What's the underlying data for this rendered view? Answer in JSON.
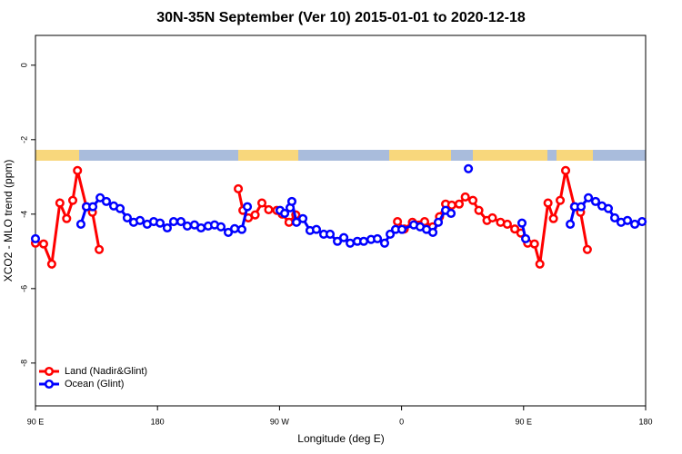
{
  "chart_data": {
    "type": "line",
    "title": "30N-35N September (Ver 10)   2015-01-01 to 2020-12-18",
    "xlabel": "Longitude (deg E)",
    "ylabel": "XCO2 - MLO trend (ppm)",
    "xlim": [
      90,
      540
    ],
    "ylim": [
      -9.15,
      0.8
    ],
    "xticks": [
      {
        "value": 90,
        "label": "90 E"
      },
      180,
      {
        "value": 270,
        "label": "90 W"
      },
      {
        "value": 360,
        "label": "0"
      },
      {
        "value": 450,
        "label": "90 E"
      },
      {
        "value": 540,
        "label": "180"
      }
    ],
    "yticks": [
      0,
      -2,
      -4,
      -6,
      -8
    ],
    "legend": "bottom-left",
    "series": [
      {
        "name": "Land (Nadir&Glint)",
        "color": "#ff0000",
        "x": [
          90,
          96,
          102,
          108,
          113,
          117.5,
          121,
          127.5,
          132,
          137,
          null,
          239.6,
          243,
          247,
          252,
          257,
          262,
          268,
          272,
          277,
          282,
          null,
          357,
          362,
          368,
          377,
          383,
          388,
          392.5,
          397,
          402.5,
          407,
          412.6,
          417,
          423,
          427,
          433,
          438,
          443.5,
          448,
          453,
          458,
          462,
          468,
          472,
          477,
          481,
          487.5,
          492,
          497
        ],
        "values": [
          -4.78,
          -4.8,
          -5.34,
          -3.7,
          -4.12,
          -3.63,
          -2.83,
          -3.8,
          -3.95,
          -4.95,
          null,
          -3.32,
          -3.9,
          -4.1,
          -4.02,
          -3.7,
          -3.88,
          -3.9,
          -4.0,
          -4.22,
          -4.02,
          null,
          -4.2,
          -4.4,
          -4.22,
          -4.2,
          -4.34,
          -4.07,
          -3.73,
          -3.76,
          -3.73,
          -3.54,
          -3.63,
          -3.9,
          -4.17,
          -4.1,
          -4.22,
          -4.27,
          -4.4,
          -4.51,
          -4.78,
          -4.8,
          -5.34,
          -3.7,
          -4.12,
          -3.63,
          -2.83,
          -3.8,
          -3.95,
          -4.95
        ]
      },
      {
        "name": "Ocean (Glint)",
        "color": "#0000ff",
        "x": [
          90,
          null,
          123.5,
          127.6,
          132.3,
          137.7,
          142.3,
          147.7,
          152.4,
          157.7,
          162.4,
          167.1,
          172.4,
          177.2,
          181.9,
          187.2,
          191.9,
          197.3,
          202,
          207.3,
          212.1,
          217.4,
          222.1,
          226.8,
          232.2,
          236.9,
          242.2,
          246.3,
          null,
          270.4,
          273.8,
          277.8,
          279.1,
          282.5,
          287.2,
          292.5,
          297.2,
          302.6,
          307.3,
          312.7,
          317.4,
          322.1,
          327.4,
          332.1,
          337.5,
          342.2,
          347.5,
          351.6,
          355.6,
          360.3,
          369,
          373.7,
          378.4,
          383.1,
          387.1,
          392.5,
          396.5,
          null,
          409.3,
          null,
          448.8,
          451.5,
          null,
          484.4,
          487.7,
          492.4,
          497.8,
          503.1,
          507.8,
          512.5,
          517.2,
          521.9,
          526.6,
          532,
          537.4
        ],
        "values": [
          -4.66,
          null,
          -4.27,
          -3.8,
          -3.8,
          -3.56,
          -3.66,
          -3.78,
          -3.85,
          -4.1,
          -4.22,
          -4.17,
          -4.27,
          -4.2,
          -4.24,
          -4.37,
          -4.2,
          -4.2,
          -4.32,
          -4.29,
          -4.37,
          -4.32,
          -4.29,
          -4.34,
          -4.49,
          -4.39,
          -4.41,
          -3.8,
          null,
          -3.9,
          -3.98,
          -3.83,
          -3.66,
          -4.22,
          -4.12,
          -4.44,
          -4.41,
          -4.54,
          -4.54,
          -4.73,
          -4.63,
          -4.78,
          -4.73,
          -4.73,
          -4.68,
          -4.66,
          -4.78,
          -4.54,
          -4.41,
          -4.41,
          -4.29,
          -4.34,
          -4.41,
          -4.49,
          -4.22,
          -3.9,
          -3.98,
          null,
          -2.78,
          null,
          -4.24,
          -4.66,
          null,
          -4.27,
          -3.8,
          -3.8,
          -3.56,
          -3.66,
          -3.78,
          -3.85,
          -4.1,
          -4.22,
          -4.17,
          -4.27,
          -4.2
        ]
      }
    ]
  }
}
